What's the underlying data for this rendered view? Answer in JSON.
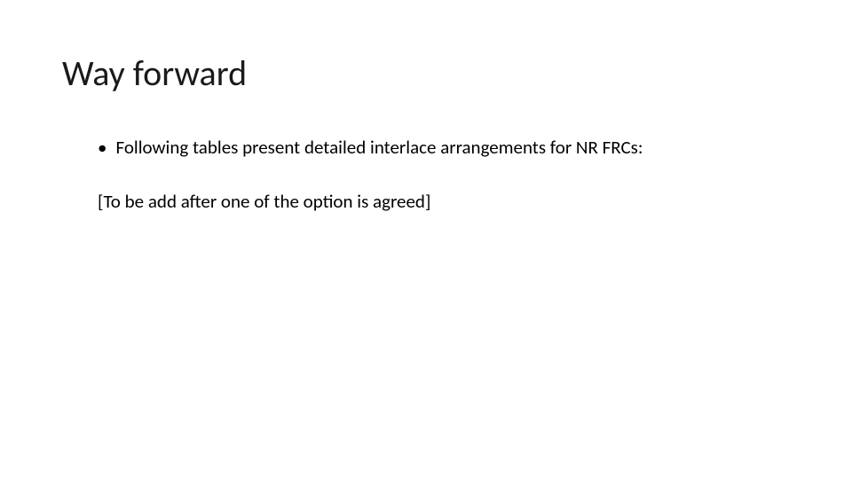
{
  "slide": {
    "title": "Way forward",
    "bullet1": {
      "marker": "•",
      "text": "Following tables present detailed interlace arrangements for NR FRCs:"
    },
    "note": "[To be add after one of the option is agreed]"
  },
  "style": {
    "background_color": "#ffffff",
    "title_color": "#1a1a1a",
    "title_fontsize": 40,
    "body_fontsize": 21,
    "body_color": "#000000",
    "font_family": "Calibri"
  }
}
